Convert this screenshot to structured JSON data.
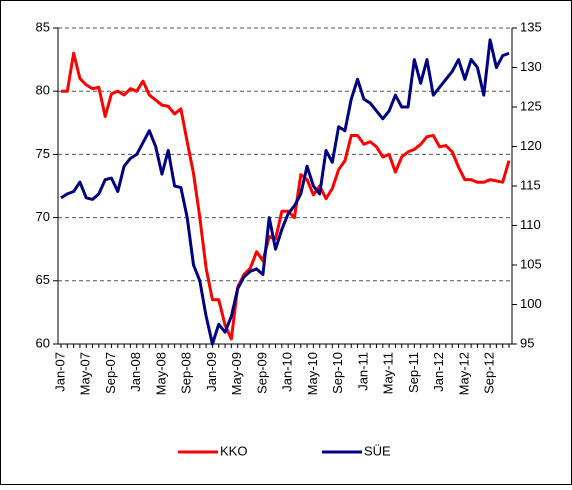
{
  "chart_data": {
    "type": "line",
    "categories": [
      "Jan-07",
      null,
      null,
      null,
      "May-07",
      null,
      null,
      null,
      "Sep-07",
      null,
      null,
      null,
      "Jan-08",
      null,
      null,
      null,
      "May-08",
      null,
      null,
      null,
      "Sep-08",
      null,
      null,
      null,
      "Jan-09",
      null,
      null,
      null,
      "May-09",
      null,
      null,
      null,
      "Sep-09",
      null,
      null,
      null,
      "Jan-10",
      null,
      null,
      null,
      "May-10",
      null,
      null,
      null,
      "Sep-10",
      null,
      null,
      null,
      "Jan-11",
      null,
      null,
      null,
      "May-11",
      null,
      null,
      null,
      "Sep-11",
      null,
      null,
      null,
      "Jan-12",
      null,
      null,
      null,
      "May-12",
      null,
      null,
      null,
      "Sep-12",
      null,
      null,
      null
    ],
    "series": [
      {
        "name": "KKO",
        "color": "#ff0000",
        "values": [
          80.0,
          80.0,
          83.0,
          81.0,
          80.5,
          80.2,
          80.3,
          78.0,
          79.8,
          80.0,
          79.7,
          80.2,
          80.0,
          80.8,
          79.7,
          79.3,
          78.9,
          78.8,
          78.2,
          78.6,
          76.0,
          73.5,
          70.0,
          66.0,
          63.5,
          63.5,
          61.5,
          60.4,
          64.5,
          65.5,
          66.0,
          67.3,
          66.6,
          68.5,
          68.3,
          70.5,
          70.5,
          70.0,
          73.4,
          73.0,
          71.8,
          72.5,
          71.5,
          72.3,
          73.8,
          74.5,
          76.5,
          76.5,
          75.8,
          76.0,
          75.6,
          74.8,
          75.0,
          73.6,
          74.8,
          75.2,
          75.4,
          75.8,
          76.4,
          76.5,
          75.6,
          75.7,
          75.2,
          74.0,
          73.0,
          73.0,
          72.8,
          72.8,
          73.0,
          72.9,
          72.8,
          74.5
        ]
      },
      {
        "name": "SÜE",
        "color": "#000080",
        "axis": "y2",
        "values": [
          113.5,
          114.0,
          114.3,
          115.5,
          113.5,
          113.3,
          114.0,
          115.8,
          116.0,
          114.3,
          117.5,
          118.5,
          119.0,
          120.5,
          122.0,
          120.0,
          116.5,
          119.5,
          115.0,
          114.8,
          111.0,
          105.0,
          103.0,
          98.5,
          95.0,
          97.5,
          96.5,
          98.5,
          102.0,
          103.5,
          104.2,
          104.5,
          103.8,
          111.0,
          107.0,
          109.5,
          111.5,
          112.5,
          114.0,
          117.5,
          115.0,
          114.0,
          119.5,
          118.0,
          122.5,
          122.0,
          126.0,
          128.5,
          126.0,
          125.5,
          124.5,
          123.5,
          124.5,
          126.5,
          125.0,
          125.0,
          131.0,
          128.0,
          131.0,
          126.5,
          127.5,
          128.5,
          129.5,
          131.0,
          128.5,
          131.0,
          130.0,
          126.5,
          133.5,
          130.0,
          131.5,
          131.8
        ]
      }
    ],
    "ylim": [
      60,
      85
    ],
    "yticks": [
      60,
      65,
      70,
      75,
      80,
      85
    ],
    "y2lim": [
      95,
      135
    ],
    "y2ticks": [
      95,
      100,
      105,
      110,
      115,
      120,
      125,
      130,
      135
    ],
    "grid": true,
    "legend": "bottom"
  }
}
